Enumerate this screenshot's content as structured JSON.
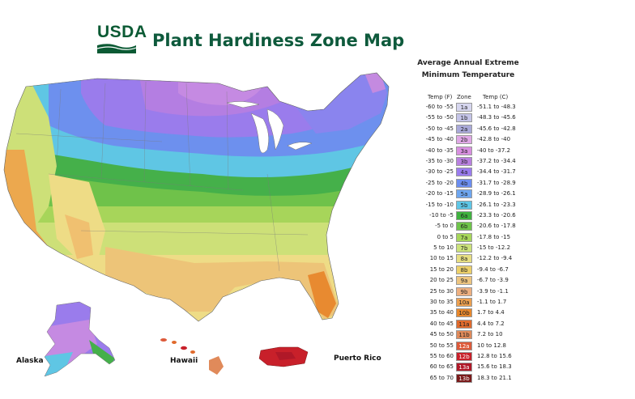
{
  "header": {
    "logo_text": "USDA",
    "title": "Plant Hardiness Zone Map"
  },
  "map_labels": {
    "alaska": "Alaska",
    "hawaii": "Hawaii",
    "puerto_rico": "Puerto Rico"
  },
  "legend": {
    "title_line1": "Average Annual Extreme",
    "title_line2": "Minimum Temperature",
    "col_f": "Temp (F)",
    "col_zone": "Zone",
    "col_c": "Temp (C)",
    "rows": [
      {
        "f": "-60 to -55",
        "zone": "1a",
        "c": "-51.1 to -48.3",
        "color": "#d6d6ef"
      },
      {
        "f": "-55 to -50",
        "zone": "1b",
        "c": "-48.3 to -45.6",
        "color": "#c4c4e8"
      },
      {
        "f": "-50 to -45",
        "zone": "2a",
        "c": "-45.6 to -42.8",
        "color": "#a9a9d9"
      },
      {
        "f": "-45 to -40",
        "zone": "2b",
        "c": "-42.8 to -40",
        "color": "#e0a8e6"
      },
      {
        "f": "-40 to -35",
        "zone": "3a",
        "c": "-40 to -37.2",
        "color": "#d88fe0"
      },
      {
        "f": "-35 to -30",
        "zone": "3b",
        "c": "-37.2 to -34.4",
        "color": "#b980e0"
      },
      {
        "f": "-30 to -25",
        "zone": "4a",
        "c": "-34.4 to -31.7",
        "color": "#9a7cee"
      },
      {
        "f": "-25 to -20",
        "zone": "4b",
        "c": "-31.7 to -28.9",
        "color": "#6c8ef0"
      },
      {
        "f": "-20 to -15",
        "zone": "5a",
        "c": "-28.9 to -26.1",
        "color": "#6ea6f0"
      },
      {
        "f": "-15 to -10",
        "zone": "5b",
        "c": "-26.1 to -23.3",
        "color": "#5ec6e6"
      },
      {
        "f": "-10 to -5",
        "zone": "6a",
        "c": "-23.3 to -20.6",
        "color": "#3fb23f"
      },
      {
        "f": "-5 to 0",
        "zone": "6b",
        "c": "-20.6 to -17.8",
        "color": "#6ec44a"
      },
      {
        "f": "0 to 5",
        "zone": "7a",
        "c": "-17.8 to -15",
        "color": "#a6d65a"
      },
      {
        "f": "5 to 10",
        "zone": "7b",
        "c": "-15 to -12.2",
        "color": "#cbe27a"
      },
      {
        "f": "10 to 15",
        "zone": "8a",
        "c": "-12.2 to -9.4",
        "color": "#e6de82"
      },
      {
        "f": "15 to 20",
        "zone": "8b",
        "c": "-9.4 to -6.7",
        "color": "#ecd06a"
      },
      {
        "f": "20 to 25",
        "zone": "9a",
        "c": "-6.7 to -3.9",
        "color": "#edc580"
      },
      {
        "f": "25 to 30",
        "zone": "9b",
        "c": "-3.9 to -1.1",
        "color": "#eeb080"
      },
      {
        "f": "30 to 35",
        "zone": "10a",
        "c": "-1.1 to 1.7",
        "color": "#eca050"
      },
      {
        "f": "35 to 40",
        "zone": "10b",
        "c": "1.7 to 4.4",
        "color": "#e8882c"
      },
      {
        "f": "40 to 45",
        "zone": "11a",
        "c": "4.4 to 7.2",
        "color": "#e06a2c"
      },
      {
        "f": "45 to 50",
        "zone": "11b",
        "c": "7.2 to 10",
        "color": "#e08a5a"
      },
      {
        "f": "50 to 55",
        "zone": "12a",
        "c": "10 to 12.8",
        "color": "#dd5a3a"
      },
      {
        "f": "55 to 60",
        "zone": "12b",
        "c": "12.8 to 15.6",
        "color": "#c8202a"
      },
      {
        "f": "60 to 65",
        "zone": "13a",
        "c": "15.6 to 18.3",
        "color": "#b01828"
      },
      {
        "f": "65 to 70",
        "zone": "13b",
        "c": "18.3 to 21.1",
        "color": "#7a1a1a"
      }
    ]
  }
}
